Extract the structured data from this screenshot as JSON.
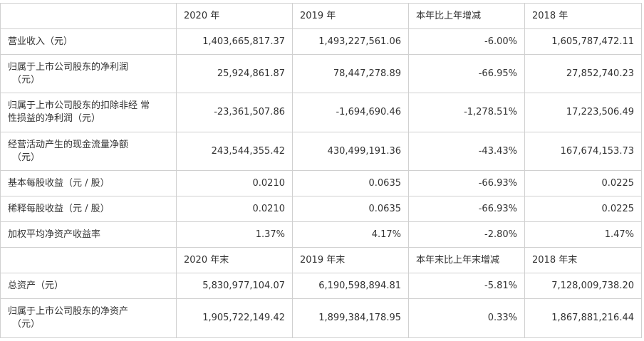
{
  "table": {
    "header_1": {
      "label": "",
      "cols": [
        "2020 年",
        "2019 年",
        "本年比上年增减",
        "2018 年"
      ]
    },
    "rows_1": [
      {
        "label_line1": "营业收入（元）",
        "label_line2": "",
        "values": [
          "1,403,665,817.37",
          "1,493,227,561.06",
          "-6.00%",
          "1,605,787,472.11"
        ]
      },
      {
        "label_line1": "归属于上市公司股东的净利润",
        "label_line2": "（元）",
        "values": [
          "25,924,861.87",
          "78,447,278.89",
          "-66.95%",
          "27,852,740.23"
        ]
      },
      {
        "label_line1": "归属于上市公司股东的扣除非经 常",
        "label_line2": "性损益的净利润（元）",
        "values": [
          "-23,361,507.86",
          "-1,694,690.46",
          "-1,278.51%",
          "17,223,506.49"
        ]
      },
      {
        "label_line1": "经营活动产生的现金流量净额",
        "label_line2": "（元）",
        "values": [
          "243,544,355.42",
          "430,499,191.36",
          "-43.43%",
          "167,674,153.73"
        ]
      },
      {
        "label_line1": "基本每股收益（元 / 股）",
        "label_line2": "",
        "values": [
          "0.0210",
          "0.0635",
          "-66.93%",
          "0.0225"
        ]
      },
      {
        "label_line1": "稀释每股收益（元 / 股）",
        "label_line2": "",
        "values": [
          "0.0210",
          "0.0635",
          "-66.93%",
          "0.0225"
        ]
      },
      {
        "label_line1": "加权平均净资产收益率",
        "label_line2": "",
        "values": [
          "1.37%",
          "4.17%",
          "-2.80%",
          "1.47%"
        ]
      }
    ],
    "header_2": {
      "label": "",
      "cols": [
        "2020 年末",
        "2019 年末",
        "本年末比上年末增减",
        "2018 年末"
      ]
    },
    "rows_2": [
      {
        "label_line1": "总资产（元）",
        "label_line2": "",
        "values": [
          "5,830,977,104.07",
          "6,190,598,894.81",
          "-5.81%",
          "7,128,009,738.20"
        ]
      },
      {
        "label_line1": "归属于上市公司股东的净资产",
        "label_line2": "（元）",
        "values": [
          "1,905,722,149.42",
          "1,899,384,178.95",
          "0.33%",
          "1,867,881,216.44"
        ]
      }
    ]
  }
}
